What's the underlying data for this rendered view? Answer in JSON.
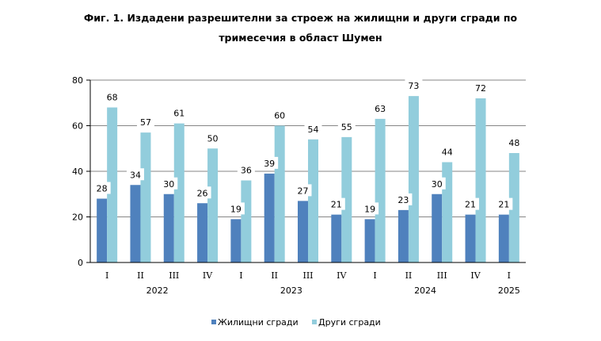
{
  "chart_data": {
    "type": "bar",
    "title_line1": "Фиг. 1. Издадени разрешителни за строеж на жилищни  и други сгради по",
    "title_line2": "тримесечия в област Шумен",
    "categories": [
      "I",
      "II",
      "III",
      "IV",
      "I",
      "II",
      "III",
      "IV",
      "I",
      "II",
      "III",
      "IV",
      "I"
    ],
    "years": [
      {
        "label": "2022",
        "from": 0,
        "to": 3
      },
      {
        "label": "2023",
        "from": 4,
        "to": 7
      },
      {
        "label": "2024",
        "from": 8,
        "to": 11
      },
      {
        "label": "2025",
        "from": 12,
        "to": 12
      }
    ],
    "series": [
      {
        "name": "Жилищни сгради",
        "color": "#4F81BD",
        "values": [
          28,
          34,
          30,
          26,
          19,
          39,
          27,
          21,
          19,
          23,
          30,
          21,
          21
        ]
      },
      {
        "name": "Други сгради",
        "color": "#92CDDC",
        "values": [
          68,
          57,
          61,
          50,
          36,
          60,
          54,
          55,
          63,
          73,
          44,
          72,
          48
        ]
      }
    ],
    "ylim": [
      0,
      80
    ],
    "yticks": [
      0,
      20,
      40,
      60,
      80
    ],
    "grid": true,
    "legend": "bottom",
    "xlabel": "",
    "ylabel": ""
  }
}
